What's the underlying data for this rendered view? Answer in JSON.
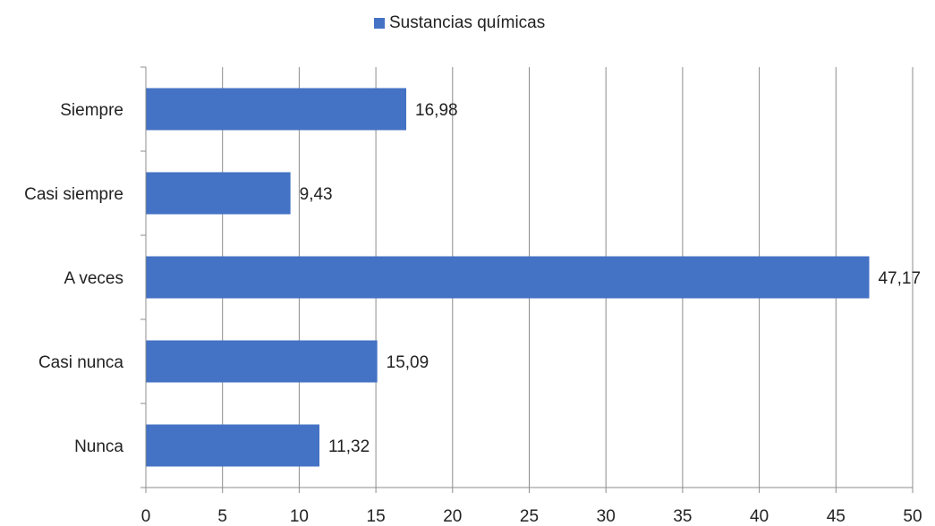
{
  "chart_data": {
    "type": "bar",
    "orientation": "horizontal",
    "categories": [
      "Siempre",
      "Casi siempre",
      "A veces",
      "Casi nunca",
      "Nunca"
    ],
    "series": [
      {
        "name": "Sustancias químicas",
        "values": [
          16.98,
          9.43,
          47.17,
          15.09,
          11.32
        ],
        "value_labels": [
          "16,98",
          "9,43",
          "47,17",
          "15,09",
          "11,32"
        ],
        "color": "#4472C4"
      }
    ],
    "xlim": [
      0,
      50
    ],
    "x_ticks": [
      0,
      5,
      10,
      15,
      20,
      25,
      30,
      35,
      40,
      45,
      50
    ],
    "grid": "vertical",
    "legend_position": "top-center",
    "gridline_color": "#8c8c8c"
  }
}
